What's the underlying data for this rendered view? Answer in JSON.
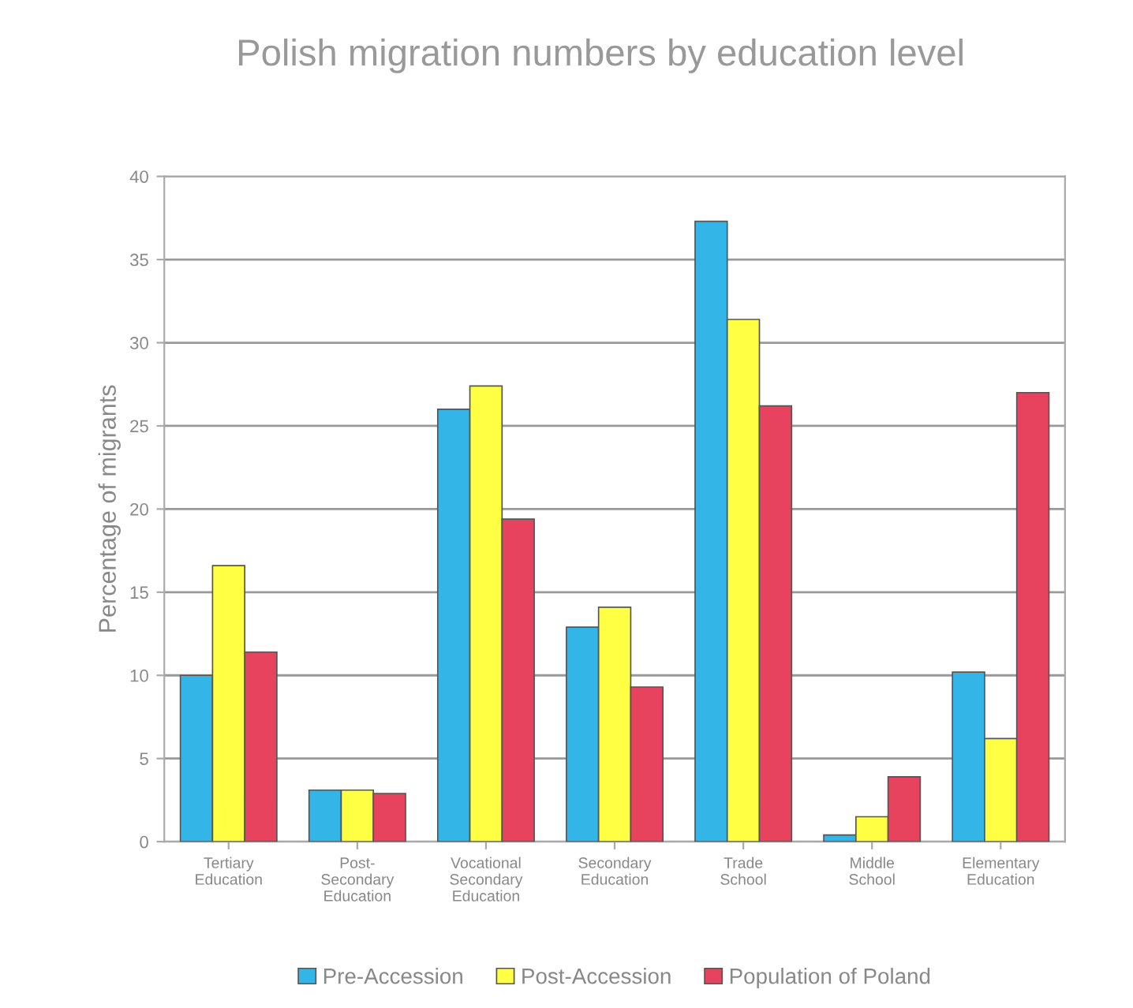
{
  "chart_data": {
    "type": "bar",
    "title": "Polish migration numbers by education level",
    "ylabel": "Percentage of migrants",
    "categories": [
      "Tertiary\nEducation",
      "Post-\nSecondary\nEducation",
      "Vocational\nSecondary\nEducation",
      "Secondary\nEducation",
      "Trade\nSchool",
      "Middle\nSchool",
      "Elementary\nEducation"
    ],
    "series": [
      {
        "name": "Pre-Accession",
        "color": "#33b5e8",
        "values": [
          10,
          3.1,
          26,
          12.9,
          37.3,
          0.4,
          10.2
        ]
      },
      {
        "name": "Post-Accession",
        "color": "#ffff44",
        "values": [
          16.6,
          3.1,
          27.4,
          14.1,
          31.4,
          1.5,
          6.2
        ]
      },
      {
        "name": "Population of Poland",
        "color": "#e8435e",
        "values": [
          11.4,
          2.9,
          19.4,
          9.3,
          26.2,
          3.9,
          27
        ]
      }
    ],
    "ylim": [
      0,
      40
    ],
    "yticks": [
      0,
      5,
      10,
      15,
      20,
      25,
      30,
      35,
      40
    ],
    "grid": "y",
    "legend": "bottom"
  }
}
